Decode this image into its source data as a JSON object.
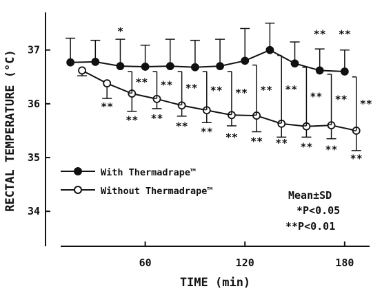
{
  "chart_data": {
    "type": "line",
    "xlabel": "TIME (min)",
    "ylabel": "RECTAL TEMPERATURE (°C)",
    "xlim": [
      0,
      195
    ],
    "ylim": [
      33.35,
      37.7
    ],
    "x_ticks": [
      {
        "value": 60,
        "label": "60"
      },
      {
        "value": 120,
        "label": "120"
      },
      {
        "value": 180,
        "label": "180"
      }
    ],
    "y_ticks": [
      {
        "value": 34,
        "label": "34"
      },
      {
        "value": 35,
        "label": "35"
      },
      {
        "value": 36,
        "label": "36"
      },
      {
        "value": 37,
        "label": "37"
      }
    ],
    "legend": {
      "position": "bottom-left",
      "items": [
        {
          "name": "With Thermadrape™",
          "marker": "filled-circle"
        },
        {
          "name": "Without Thermadrape™",
          "marker": "open-circle"
        }
      ]
    },
    "stats_note": {
      "mean_sd": "Mean±SD",
      "p05": "*P<0.05",
      "p01": "**P<0.01"
    },
    "series": [
      {
        "name": "With Thermadrape™",
        "marker": "filled-circle",
        "points": [
          {
            "x": 15,
            "y": 36.77,
            "sd": 0.45
          },
          {
            "x": 30,
            "y": 36.78,
            "sd": 0.4
          },
          {
            "x": 45,
            "y": 36.7,
            "sd": 0.5
          },
          {
            "x": 60,
            "y": 36.69,
            "sd": 0.4
          },
          {
            "x": 75,
            "y": 36.7,
            "sd": 0.5
          },
          {
            "x": 90,
            "y": 36.68,
            "sd": 0.5
          },
          {
            "x": 105,
            "y": 36.7,
            "sd": 0.5
          },
          {
            "x": 120,
            "y": 36.8,
            "sd": 0.6
          },
          {
            "x": 135,
            "y": 37.0,
            "sd": 0.5
          },
          {
            "x": 150,
            "y": 36.75,
            "sd": 0.4
          },
          {
            "x": 165,
            "y": 36.62,
            "sd": 0.4
          },
          {
            "x": 180,
            "y": 36.6,
            "sd": 0.4
          }
        ]
      },
      {
        "name": "Without Thermadrape™",
        "marker": "open-circle",
        "points": [
          {
            "x": 22,
            "y": 36.62,
            "sd": 0.1
          },
          {
            "x": 37,
            "y": 36.38,
            "sd": 0.28
          },
          {
            "x": 52,
            "y": 36.19,
            "sd": 0.33
          },
          {
            "x": 67,
            "y": 36.09,
            "sd": 0.18
          },
          {
            "x": 82,
            "y": 35.97,
            "sd": 0.2
          },
          {
            "x": 97,
            "y": 35.88,
            "sd": 0.23
          },
          {
            "x": 112,
            "y": 35.79,
            "sd": 0.2
          },
          {
            "x": 127,
            "y": 35.78,
            "sd": 0.3
          },
          {
            "x": 142,
            "y": 35.63,
            "sd": 0.25
          },
          {
            "x": 157,
            "y": 35.58,
            "sd": 0.2
          },
          {
            "x": 172,
            "y": 35.6,
            "sd": 0.25
          },
          {
            "x": 187,
            "y": 35.5,
            "sd": 0.37
          }
        ]
      }
    ],
    "significance": [
      {
        "x": 45,
        "y": 37.35,
        "label": "*",
        "placement": "above-with-series"
      },
      {
        "x": 165,
        "y": 37.3,
        "label": "**",
        "placement": "above-with-series"
      },
      {
        "x": 180,
        "y": 37.3,
        "label": "**",
        "placement": "above-with-series"
      },
      {
        "x": 37,
        "y": 35.95,
        "label": "**",
        "placement": "below-without-series"
      },
      {
        "x": 52,
        "y": 35.7,
        "label": "**",
        "placement": "below-without-series"
      },
      {
        "x": 67,
        "y": 35.73,
        "label": "**",
        "placement": "below-without-series"
      },
      {
        "x": 82,
        "y": 35.58,
        "label": "**",
        "placement": "below-without-series"
      },
      {
        "x": 97,
        "y": 35.48,
        "label": "**",
        "placement": "below-without-series"
      },
      {
        "x": 112,
        "y": 35.38,
        "label": "**",
        "placement": "below-without-series"
      },
      {
        "x": 127,
        "y": 35.3,
        "label": "**",
        "placement": "below-without-series"
      },
      {
        "x": 142,
        "y": 35.27,
        "label": "**",
        "placement": "below-without-series"
      },
      {
        "x": 157,
        "y": 35.2,
        "label": "**",
        "placement": "below-without-series"
      },
      {
        "x": 172,
        "y": 35.15,
        "label": "**",
        "placement": "below-without-series"
      },
      {
        "x": 187,
        "y": 34.98,
        "label": "**",
        "placement": "below-without-series"
      }
    ],
    "comparison_brackets": [
      {
        "x": 52,
        "y_top": 36.6,
        "y_bottom": 36.2,
        "label": "**"
      },
      {
        "x": 67,
        "y_top": 36.6,
        "y_bottom": 36.1,
        "label": "**"
      },
      {
        "x": 82,
        "y_top": 36.6,
        "y_bottom": 35.98,
        "label": "**"
      },
      {
        "x": 97,
        "y_top": 36.6,
        "y_bottom": 35.89,
        "label": "**"
      },
      {
        "x": 112,
        "y_top": 36.6,
        "y_bottom": 35.8,
        "label": "**"
      },
      {
        "x": 127,
        "y_top": 36.72,
        "y_bottom": 35.79,
        "label": "**"
      },
      {
        "x": 142,
        "y_top": 36.9,
        "y_bottom": 35.64,
        "label": "**"
      },
      {
        "x": 157,
        "y_top": 36.68,
        "y_bottom": 35.59,
        "label": "**"
      },
      {
        "x": 172,
        "y_top": 36.55,
        "y_bottom": 35.61,
        "label": "**"
      },
      {
        "x": 187,
        "y_top": 36.5,
        "y_bottom": 35.5,
        "label": "**"
      }
    ],
    "colors": {
      "line": "#111111",
      "marker_fill_with": "#111111",
      "marker_fill_without": "#ffffff",
      "background": "#ffffff"
    }
  }
}
